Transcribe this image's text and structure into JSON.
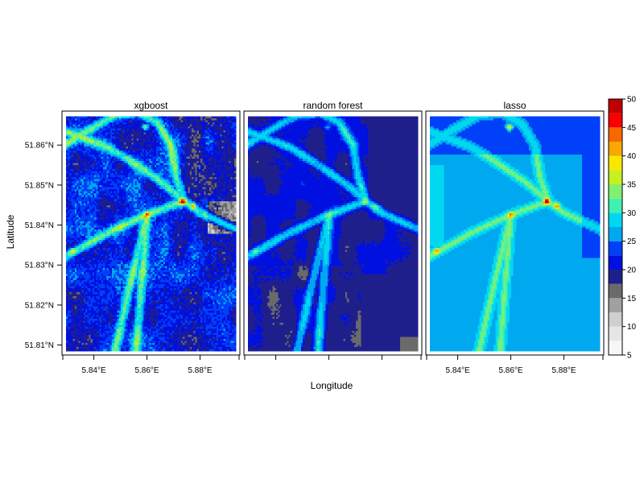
{
  "chart_data": {
    "type": "heatmap",
    "xlabel": "Longitude",
    "ylabel": "Latitude",
    "xlim": [
      5.828,
      5.895
    ],
    "ylim": [
      51.8075,
      51.8685
    ],
    "x_ticks": [
      {
        "value": 5.84,
        "label": "5.84°E"
      },
      {
        "value": 5.86,
        "label": "5.86°E"
      },
      {
        "value": 5.88,
        "label": "5.88°E"
      }
    ],
    "y_ticks": [
      {
        "value": 51.81,
        "label": "51.81°N"
      },
      {
        "value": 51.82,
        "label": "51.82°N"
      },
      {
        "value": 51.83,
        "label": "51.83°N"
      },
      {
        "value": 51.84,
        "label": "51.84°N"
      },
      {
        "value": 51.85,
        "label": "51.85°N"
      },
      {
        "value": 51.86,
        "label": "51.86°N"
      }
    ],
    "panels": [
      {
        "title": "xgboost",
        "base_level": 22,
        "road_level": 29,
        "noise": 0.9
      },
      {
        "title": "random forest",
        "base_level": 20,
        "road_level": 27,
        "noise": 0.5
      },
      {
        "title": "lasso",
        "base_level": 25,
        "road_level": 28,
        "noise": 0.15
      }
    ],
    "roads": [
      [
        [
          5.829,
          51.86
        ],
        [
          5.84,
          51.8645
        ],
        [
          5.848,
          51.8675
        ],
        [
          5.857,
          51.868
        ],
        [
          5.864,
          51.8655
        ],
        [
          5.869,
          51.86
        ],
        [
          5.871,
          51.852
        ],
        [
          5.874,
          51.846
        ],
        [
          5.88,
          51.843
        ],
        [
          5.895,
          51.8385
        ]
      ],
      [
        [
          5.829,
          51.832
        ],
        [
          5.845,
          51.838
        ],
        [
          5.86,
          51.8425
        ],
        [
          5.874,
          51.846
        ]
      ],
      [
        [
          5.874,
          51.846
        ],
        [
          5.866,
          51.8505
        ],
        [
          5.855,
          51.8555
        ],
        [
          5.845,
          51.8595
        ],
        [
          5.829,
          51.8635
        ]
      ],
      [
        [
          5.86,
          51.8425
        ],
        [
          5.854,
          51.826
        ],
        [
          5.848,
          51.8085
        ]
      ],
      [
        [
          5.86,
          51.8425
        ],
        [
          5.858,
          51.826
        ],
        [
          5.856,
          51.8085
        ]
      ]
    ],
    "legend": {
      "levels": [
        5,
        10,
        15,
        20,
        25,
        30,
        35,
        40,
        45,
        50
      ],
      "bands": [
        {
          "from": 5,
          "to": 7.5,
          "color": "#F7F7F7"
        },
        {
          "from": 7.5,
          "to": 10,
          "color": "#E6E6E6"
        },
        {
          "from": 10,
          "to": 12.5,
          "color": "#CFCFCF"
        },
        {
          "from": 12.5,
          "to": 15,
          "color": "#A0A0A0"
        },
        {
          "from": 15,
          "to": 17.5,
          "color": "#6A6A6A"
        },
        {
          "from": 17.5,
          "to": 20,
          "color": "#1F1F8C"
        },
        {
          "from": 20,
          "to": 22.5,
          "color": "#0010E0"
        },
        {
          "from": 22.5,
          "to": 25,
          "color": "#0040F8"
        },
        {
          "from": 25,
          "to": 27.5,
          "color": "#00A8F0"
        },
        {
          "from": 27.5,
          "to": 30,
          "color": "#00D8F0"
        },
        {
          "from": 30,
          "to": 32.5,
          "color": "#40F0B0"
        },
        {
          "from": 32.5,
          "to": 35,
          "color": "#80F070"
        },
        {
          "from": 35,
          "to": 37.5,
          "color": "#C8F020"
        },
        {
          "from": 37.5,
          "to": 40,
          "color": "#F8E800"
        },
        {
          "from": 40,
          "to": 42.5,
          "color": "#F8A800"
        },
        {
          "from": 42.5,
          "to": 45,
          "color": "#F86800"
        },
        {
          "from": 45,
          "to": 47.5,
          "color": "#F80000"
        },
        {
          "from": 47.5,
          "to": 50,
          "color": "#C00000"
        }
      ]
    }
  }
}
